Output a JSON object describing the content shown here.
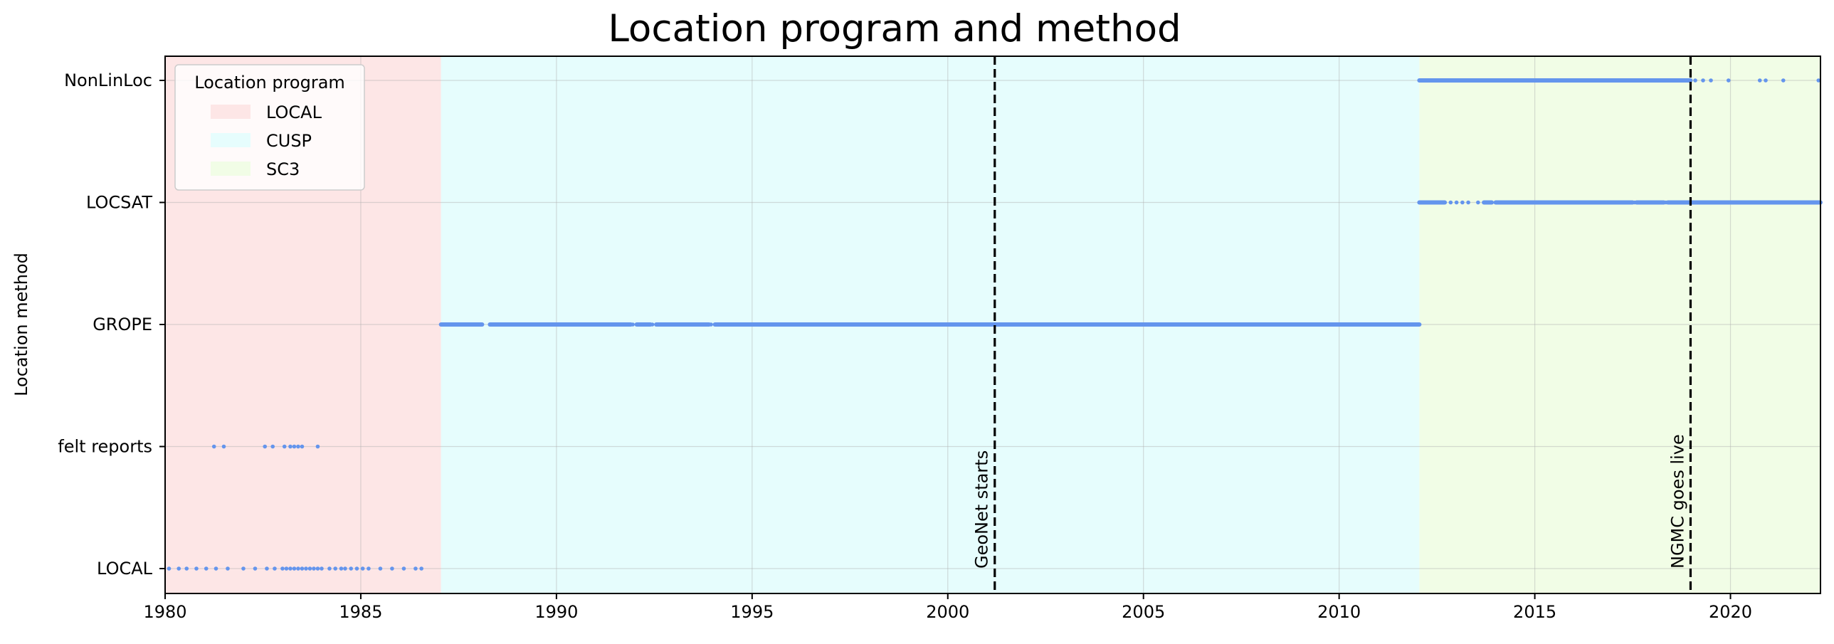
{
  "chart_data": {
    "type": "scatter",
    "title": "Location program and method",
    "xlabel": "",
    "ylabel": "Location method",
    "xlim": [
      1980,
      2022.3
    ],
    "x_ticks": [
      1980,
      1985,
      1990,
      1995,
      2000,
      2005,
      2010,
      2015,
      2020
    ],
    "y_categories": [
      "LOCAL",
      "felt reports",
      "GROPE",
      "LOCSAT",
      "NonLinLoc"
    ],
    "grid": true,
    "point_color": "#6495ed",
    "legend": {
      "title": "Location program",
      "placement": "top-left",
      "entries": [
        {
          "label": "LOCAL",
          "color": "#fde6e6"
        },
        {
          "label": "CUSP",
          "color": "#e6fdfd"
        },
        {
          "label": "SC3",
          "color": "#f1fde6"
        }
      ]
    },
    "program_spans": [
      {
        "name": "LOCAL",
        "x_start": 1980,
        "x_end": 1987.05,
        "color": "#fde6e6"
      },
      {
        "name": "CUSP",
        "x_start": 1987.05,
        "x_end": 2012.05,
        "color": "#e6fdfd"
      },
      {
        "name": "SC3",
        "x_start": 2012.05,
        "x_end": 2022.3,
        "color": "#f1fde6"
      }
    ],
    "event_lines": [
      {
        "label": "GeoNet starts",
        "x": 2001.2
      },
      {
        "label": "NGMC goes live",
        "x": 2018.98
      }
    ],
    "series": [
      {
        "method": "LOCAL",
        "x": [
          1980.1,
          1980.35,
          1980.55,
          1980.8,
          1981.05,
          1981.3,
          1981.6,
          1982.0,
          1982.3,
          1982.6,
          1982.8,
          1983.0,
          1983.1,
          1983.2,
          1983.3,
          1983.4,
          1983.5,
          1983.6,
          1983.7,
          1983.8,
          1983.9,
          1984.0,
          1984.2,
          1984.35,
          1984.5,
          1984.6,
          1984.75,
          1984.9,
          1985.05,
          1985.2,
          1985.5,
          1985.8,
          1986.1,
          1986.4,
          1986.55
        ]
      },
      {
        "method": "felt reports",
        "x": [
          1981.25,
          1981.5,
          1982.55,
          1982.75,
          1983.05,
          1983.2,
          1983.3,
          1983.4,
          1983.5,
          1983.9
        ]
      },
      {
        "method": "GROPE",
        "ranges": [
          [
            1987.05,
            1988.1
          ],
          [
            1988.3,
            1991.9
          ],
          [
            1992.05,
            1992.4
          ],
          [
            1992.55,
            1993.9
          ],
          [
            1994.05,
            2012.05
          ]
        ],
        "x": [
          1991.95,
          1992.45,
          1993.95
        ]
      },
      {
        "method": "LOCSAT",
        "ranges": [
          [
            2012.05,
            2012.7
          ],
          [
            2013.7,
            2013.9
          ],
          [
            2014.0,
            2017.5
          ],
          [
            2017.6,
            2018.3
          ],
          [
            2018.4,
            2022.3
          ]
        ],
        "x": [
          2012.85,
          2013.0,
          2013.15,
          2013.3,
          2013.55,
          2017.55,
          2018.35
        ]
      },
      {
        "method": "NonLinLoc",
        "ranges": [
          [
            2012.05,
            2018.98
          ]
        ],
        "x": [
          2019.1,
          2019.3,
          2019.5,
          2019.95,
          2020.75,
          2020.9,
          2021.35,
          2022.25
        ]
      }
    ]
  }
}
